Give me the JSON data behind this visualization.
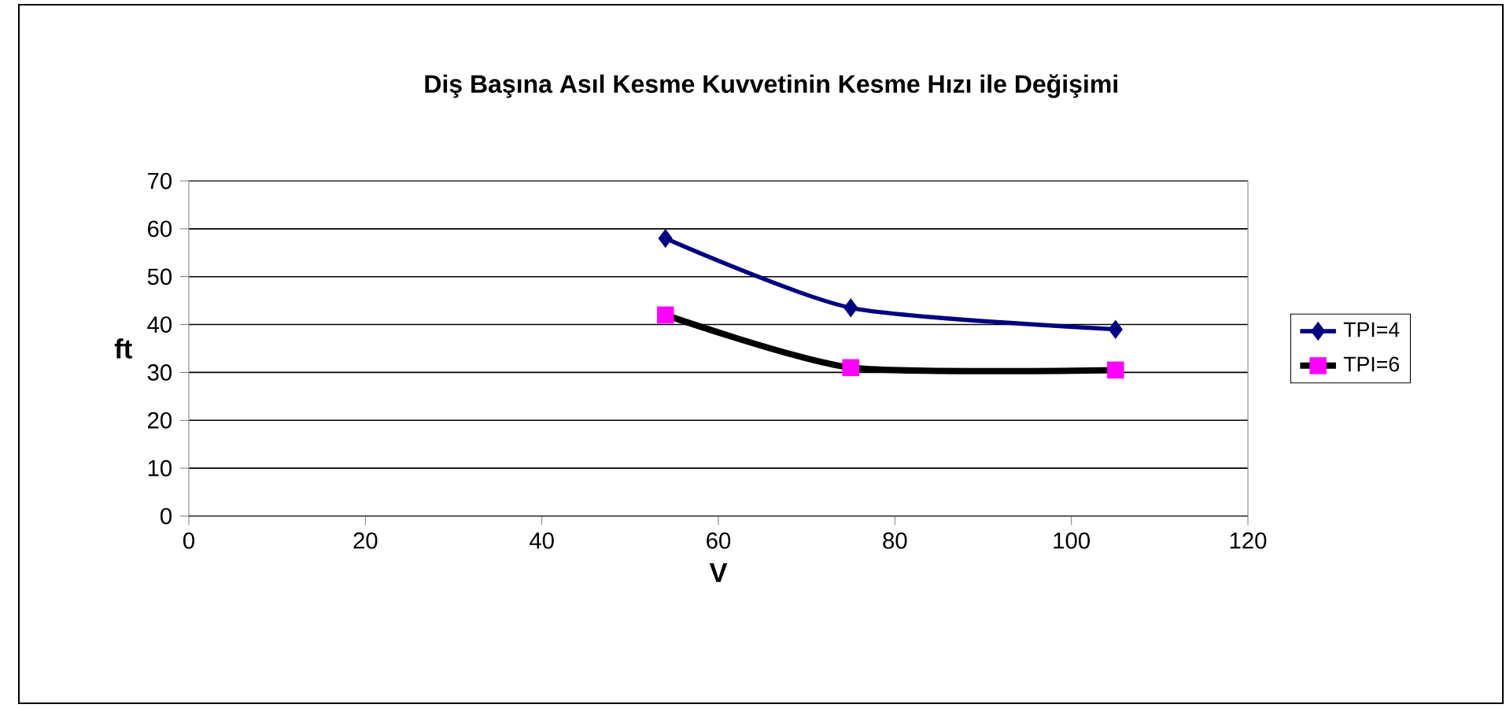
{
  "chart_data": {
    "type": "line",
    "title": "Diş Başına Asıl Kesme  Kuvvetinin  Kesme  Hızı ile Değişimi",
    "xlabel": "V",
    "ylabel": "ft",
    "series": [
      {
        "name": "TPI=4",
        "color": "#000080",
        "marker": "diamond",
        "colors": [
          "#000080",
          "#000080",
          "#000080"
        ],
        "x": [
          54,
          75,
          105
        ],
        "values": [
          58,
          43.5,
          39
        ]
      },
      {
        "name": "TPI=6",
        "color": "#000000",
        "marker": "square",
        "colors": [
          "#ff00ff",
          "#ff00ff",
          "#ff00ff"
        ],
        "x": [
          54,
          75,
          105
        ],
        "values": [
          42,
          31,
          30.5
        ]
      }
    ],
    "xlim": [
      0,
      120
    ],
    "xticks": [
      0,
      20,
      40,
      60,
      80,
      100,
      120
    ],
    "ylim": [
      0,
      70
    ],
    "yticks": [
      0,
      10,
      20,
      30,
      40,
      50,
      60,
      70
    ],
    "grid": "y",
    "legend": "right"
  }
}
